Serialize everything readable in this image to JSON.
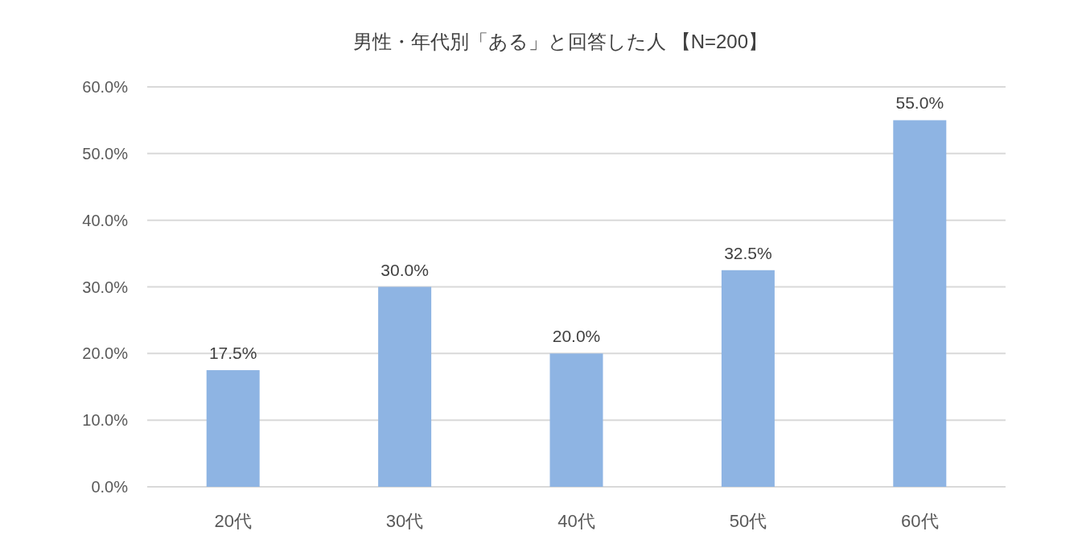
{
  "chart_data": {
    "type": "bar",
    "title": "男性・年代別「ある」と回答した人 【N=200】",
    "categories": [
      "20代",
      "30代",
      "40代",
      "50代",
      "60代"
    ],
    "values": [
      17.5,
      30.0,
      20.0,
      32.5,
      55.0
    ],
    "value_labels": [
      "17.5%",
      "30.0%",
      "20.0%",
      "32.5%",
      "55.0%"
    ],
    "color": "#8eb4e3",
    "ylim": [
      0,
      60
    ],
    "yticks": [
      {
        "value": 0,
        "label": "0.0%"
      },
      {
        "value": 10,
        "label": "10.0%"
      },
      {
        "value": 20,
        "label": "20.0%"
      },
      {
        "value": 30,
        "label": "30.0%"
      },
      {
        "value": 40,
        "label": "40.0%"
      },
      {
        "value": 50,
        "label": "50.0%"
      },
      {
        "value": 60,
        "label": "60.0%"
      }
    ],
    "grid": "y"
  }
}
